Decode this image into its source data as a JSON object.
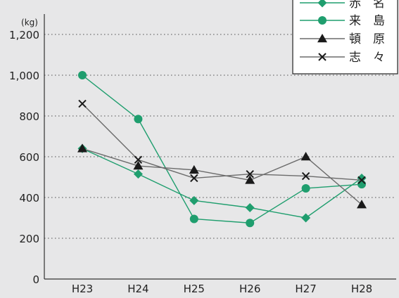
{
  "chart_data": {
    "type": "line",
    "title": "",
    "categories": [
      "H23",
      "H24",
      "H25",
      "H26",
      "H27",
      "H28"
    ],
    "y_unit": "(kg)",
    "ylim": [
      0,
      1300
    ],
    "yticks": [
      {
        "value": 0,
        "label": "0"
      },
      {
        "value": 200,
        "label": "200"
      },
      {
        "value": 400,
        "label": "400"
      },
      {
        "value": 600,
        "label": "600"
      },
      {
        "value": 800,
        "label": "800"
      },
      {
        "value": 1000,
        "label": "1,000"
      },
      {
        "value": 1200,
        "label": "1,200"
      }
    ],
    "grid": "dotted-horizontal",
    "legend_position": "top-right",
    "series": [
      {
        "name": "赤　名",
        "marker": "diamond",
        "color": "#1f9e6e",
        "values": [
          640,
          515,
          385,
          350,
          300,
          495
        ]
      },
      {
        "name": "来　島",
        "marker": "circle",
        "color": "#1f9e6e",
        "values": [
          1000,
          785,
          295,
          275,
          445,
          465
        ]
      },
      {
        "name": "頓　原",
        "marker": "triangle",
        "color": "#1a1a1a",
        "values": [
          640,
          555,
          535,
          485,
          600,
          365
        ]
      },
      {
        "name": "志　々",
        "marker": "x",
        "color": "#1a1a1a",
        "values": [
          860,
          585,
          495,
          515,
          505,
          485
        ]
      }
    ]
  }
}
